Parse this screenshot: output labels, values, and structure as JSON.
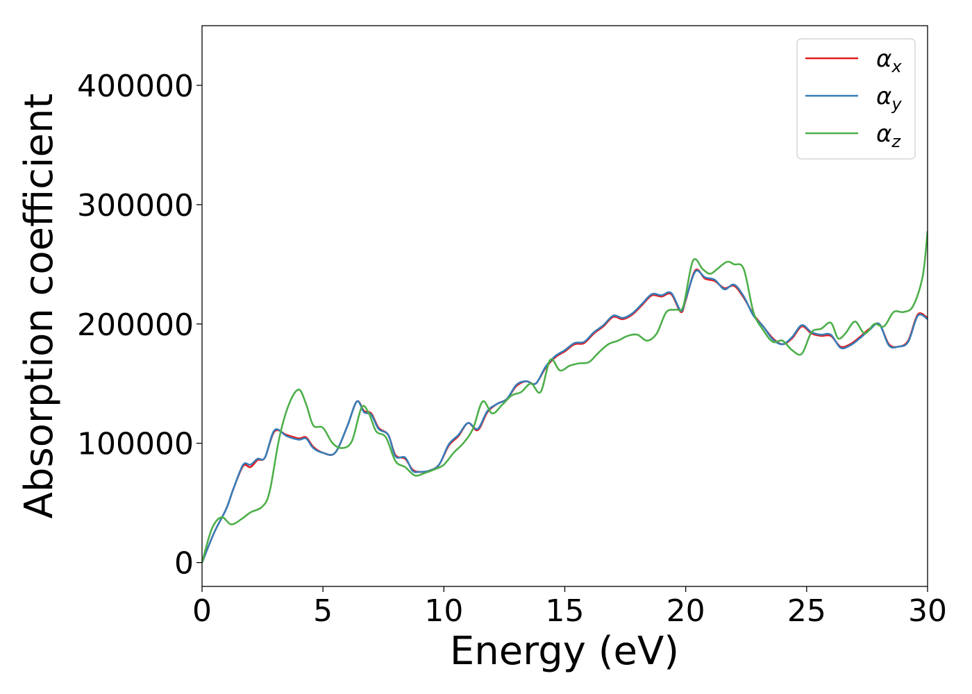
{
  "chart_data": {
    "type": "line",
    "xlabel": "Energy (eV)",
    "ylabel": "Absorption coefficient",
    "xlim": [
      0,
      30
    ],
    "ylim": [
      -20000,
      450000
    ],
    "x_ticks": [
      "0",
      "5",
      "10",
      "15",
      "20",
      "25",
      "30"
    ],
    "y_ticks": [
      "0",
      "100000",
      "200000",
      "300000",
      "400000"
    ],
    "legend_position": "top-right",
    "grid": false,
    "series": [
      {
        "name": "αx",
        "legend_symbol": "α",
        "legend_subscript": "x",
        "color": "#e41a1c",
        "x": [
          0,
          0.5,
          1,
          1.3,
          1.7,
          2,
          2.3,
          2.6,
          3,
          3.5,
          4,
          4.3,
          4.6,
          5,
          5.5,
          6,
          6.4,
          6.7,
          7,
          7.3,
          7.7,
          8,
          8.4,
          8.7,
          9,
          9.4,
          9.8,
          10.2,
          10.6,
          11,
          11.4,
          11.8,
          12.2,
          12.6,
          13,
          13.4,
          13.8,
          14.2,
          14.6,
          15,
          15.4,
          15.8,
          16.2,
          16.6,
          17,
          17.4,
          17.8,
          18.2,
          18.6,
          19,
          19.4,
          19.8,
          20,
          20.4,
          20.8,
          21.2,
          21.6,
          22,
          22.4,
          22.8,
          23.2,
          23.6,
          24,
          24.4,
          24.8,
          25.2,
          25.6,
          26,
          26.4,
          26.8,
          27.2,
          27.6,
          28,
          28.4,
          28.8,
          29.2,
          29.6,
          30
        ],
        "values": [
          0,
          25000,
          45000,
          62000,
          81000,
          80000,
          86000,
          88000,
          110000,
          107000,
          104000,
          105000,
          97000,
          92000,
          92000,
          114000,
          135000,
          127000,
          125000,
          113000,
          107000,
          90000,
          87000,
          78000,
          76000,
          77000,
          82000,
          98000,
          106000,
          117000,
          111000,
          126000,
          133000,
          137000,
          148000,
          152000,
          150000,
          163000,
          172000,
          177000,
          183000,
          184000,
          192000,
          198000,
          206000,
          204000,
          208000,
          216000,
          224000,
          223000,
          225000,
          210000,
          220000,
          245000,
          238000,
          236000,
          230000,
          232000,
          222000,
          208000,
          198000,
          188000,
          183000,
          188000,
          198000,
          192000,
          190000,
          190000,
          181000,
          183000,
          189000,
          196000,
          200000,
          183000,
          181000,
          186000,
          208000,
          205000
        ]
      },
      {
        "name": "αy",
        "legend_symbol": "α",
        "legend_subscript": "y",
        "color": "#377eb8",
        "x": [
          0,
          0.5,
          1,
          1.3,
          1.7,
          2,
          2.3,
          2.6,
          3,
          3.5,
          4,
          4.3,
          4.6,
          5,
          5.5,
          6,
          6.4,
          6.7,
          7,
          7.3,
          7.7,
          8,
          8.4,
          8.7,
          9,
          9.4,
          9.8,
          10.2,
          10.6,
          11,
          11.4,
          11.8,
          12.2,
          12.6,
          13,
          13.4,
          13.8,
          14.2,
          14.6,
          15,
          15.4,
          15.8,
          16.2,
          16.6,
          17,
          17.4,
          17.8,
          18.2,
          18.6,
          19,
          19.4,
          19.8,
          20,
          20.4,
          20.8,
          21.2,
          21.6,
          22,
          22.4,
          22.8,
          23.2,
          23.6,
          24,
          24.4,
          24.8,
          25.2,
          25.6,
          26,
          26.4,
          26.8,
          27.2,
          27.6,
          28,
          28.4,
          28.8,
          29.2,
          29.6,
          30
        ],
        "values": [
          0,
          25000,
          45000,
          62000,
          82000,
          82000,
          87000,
          88000,
          111000,
          106000,
          103000,
          104000,
          96000,
          92000,
          92000,
          114000,
          135000,
          126000,
          124000,
          112000,
          107000,
          89000,
          88000,
          77000,
          76000,
          77000,
          82000,
          99000,
          107000,
          117000,
          112000,
          127000,
          133000,
          137000,
          149000,
          152000,
          150000,
          164000,
          173000,
          178000,
          184000,
          185000,
          193000,
          199000,
          207000,
          205000,
          209000,
          217000,
          225000,
          224000,
          226000,
          211000,
          221000,
          244000,
          239000,
          237000,
          229000,
          233000,
          223000,
          207000,
          198000,
          187000,
          183000,
          189000,
          199000,
          193000,
          191000,
          191000,
          180000,
          182000,
          188000,
          195000,
          200000,
          182000,
          181000,
          185000,
          207000,
          204000
        ]
      },
      {
        "name": "αz",
        "legend_symbol": "α",
        "legend_subscript": "z",
        "color": "#4daf4a",
        "x": [
          0,
          0.4,
          0.8,
          1.2,
          1.6,
          2,
          2.5,
          2.8,
          3.2,
          3.6,
          4,
          4.3,
          4.6,
          5,
          5.4,
          5.8,
          6.2,
          6.6,
          6.9,
          7.2,
          7.6,
          8,
          8.4,
          8.8,
          9.2,
          9.6,
          10,
          10.4,
          10.8,
          11.2,
          11.6,
          12,
          12.4,
          12.8,
          13.2,
          13.6,
          14,
          14.4,
          14.8,
          15.2,
          15.6,
          16,
          16.4,
          16.8,
          17.2,
          17.6,
          18,
          18.4,
          18.8,
          19.2,
          19.6,
          19.9,
          20.3,
          20.7,
          21,
          21.3,
          21.7,
          22,
          22.4,
          22.8,
          23.2,
          23.6,
          24,
          24.4,
          24.8,
          25.2,
          25.6,
          26,
          26.3,
          26.6,
          27,
          27.4,
          27.8,
          28.2,
          28.6,
          29,
          29.4,
          29.8,
          30
        ],
        "values": [
          0,
          28000,
          38000,
          32000,
          36000,
          42000,
          47000,
          60000,
          105000,
          133000,
          145000,
          133000,
          115000,
          113000,
          100000,
          96000,
          102000,
          130000,
          125000,
          110000,
          105000,
          85000,
          80000,
          73000,
          75000,
          78000,
          82000,
          92000,
          100000,
          112000,
          135000,
          125000,
          132000,
          140000,
          143000,
          150000,
          143000,
          170000,
          161000,
          165000,
          167000,
          168000,
          176000,
          183000,
          186000,
          190000,
          191000,
          186000,
          192000,
          210000,
          212000,
          215000,
          253000,
          246000,
          242000,
          246000,
          252000,
          250000,
          246000,
          210000,
          195000,
          185000,
          186000,
          178000,
          175000,
          193000,
          196000,
          201000,
          188000,
          192000,
          202000,
          192000,
          200000,
          198000,
          210000,
          210000,
          215000,
          240000,
          278000
        ]
      }
    ]
  }
}
